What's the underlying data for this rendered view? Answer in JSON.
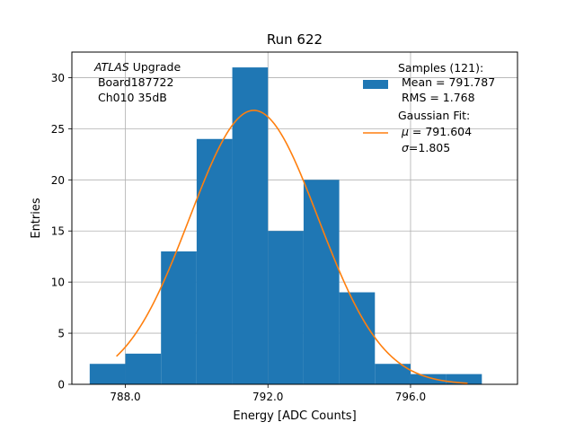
{
  "chart_data": {
    "type": "bar",
    "title": "Run 622",
    "xlabel": "Energy [ADC Counts]",
    "ylabel": "Entries",
    "xlim": [
      786.5,
      799.0
    ],
    "ylim": [
      0,
      32.5
    ],
    "grid": true,
    "x_ticks": [
      788.0,
      792.0,
      796.0
    ],
    "x_tick_labels": [
      "788.0",
      "792.0",
      "796.0"
    ],
    "y_ticks": [
      0,
      5,
      10,
      15,
      20,
      25,
      30
    ],
    "y_tick_labels": [
      "0",
      "5",
      "10",
      "15",
      "20",
      "25",
      "30"
    ],
    "histogram": {
      "name": "Samples (121)",
      "color": "#1f77b4",
      "bin_edges": [
        787.0,
        788.0,
        789.0,
        790.0,
        791.0,
        792.0,
        793.0,
        794.0,
        795.0,
        796.0,
        797.0,
        798.0
      ],
      "counts": [
        2,
        3,
        13,
        24,
        31,
        15,
        20,
        9,
        2,
        1,
        1
      ]
    },
    "fit": {
      "name": "Gaussian Fit",
      "color": "#ff7f0e",
      "amplitude": 26.8,
      "mu": 791.604,
      "sigma": 1.805,
      "x_range": [
        787.75,
        797.6
      ]
    },
    "annotation": {
      "italic": "ATLAS",
      "rest": " Upgrade",
      "line2": " Board187722",
      "line3": " Ch010 35dB"
    },
    "legend": {
      "position": "top-right",
      "samples": [
        "Samples (121):",
        " Mean = 791.787",
        " RMS = 1.768"
      ],
      "fit_line1": "Gaussian Fit:",
      "fit_mu_symbol": "μ",
      "fit_mu_value": " = 791.604",
      "fit_sigma_symbol": "σ",
      "fit_sigma_value": "=1.805"
    }
  }
}
